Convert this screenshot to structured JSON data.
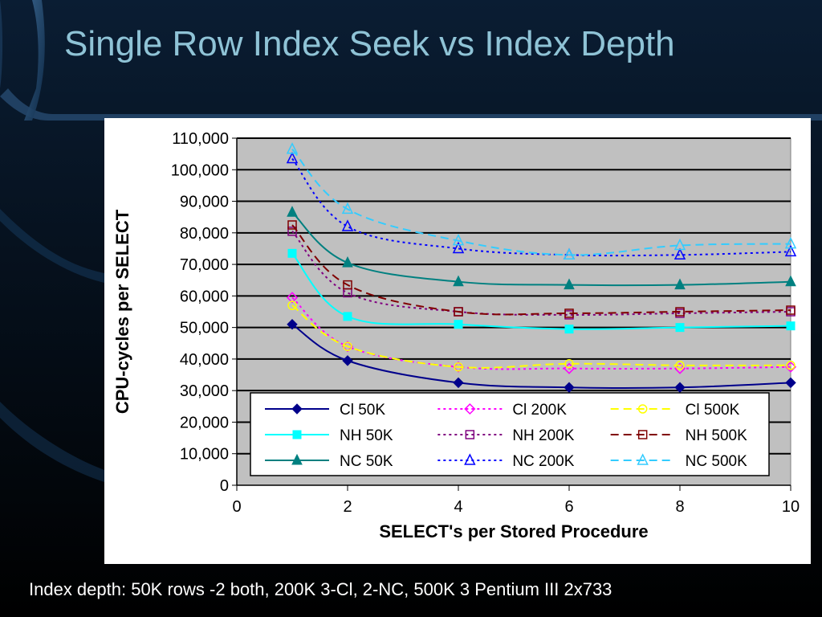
{
  "slide": {
    "title": "Single Row Index Seek vs Index Depth",
    "footer": "Index depth: 50K rows -2 both, 200K 3-Cl, 2-NC, 500K 3 Pentium III 2x733",
    "colors": {
      "background": "#000000",
      "title": "#8fc3d6",
      "footer": "#ffffff",
      "plot_area": "#c0c0c0"
    }
  },
  "chart_data": {
    "type": "line",
    "title": "",
    "xlabel": "SELECT's per Stored Procedure",
    "ylabel": "CPU-cycles per SELECT",
    "xlim": [
      0,
      10
    ],
    "ylim": [
      0,
      110000
    ],
    "x_ticks": [
      0,
      2,
      4,
      6,
      8,
      10
    ],
    "x_tick_labels": [
      "0",
      "2",
      "4",
      "6",
      "8",
      "10"
    ],
    "y_ticks": [
      0,
      10000,
      20000,
      30000,
      40000,
      50000,
      60000,
      70000,
      80000,
      90000,
      100000,
      110000
    ],
    "y_tick_labels": [
      "0",
      "10,000",
      "20,000",
      "30,000",
      "40,000",
      "50,000",
      "60,000",
      "70,000",
      "80,000",
      "90,000",
      "100,000",
      "110,000"
    ],
    "grid": "horizontal",
    "legend_position": "bottom-inside",
    "x": [
      1,
      2,
      4,
      6,
      8,
      10
    ],
    "series": [
      {
        "name": "Cl 50K",
        "values": [
          51000,
          39500,
          32500,
          31000,
          31000,
          32500
        ],
        "color": "#00008b",
        "dash": "solid",
        "marker": "diamond",
        "filled": true
      },
      {
        "name": "Cl 200K",
        "values": [
          59500,
          44000,
          37500,
          37000,
          37000,
          37500
        ],
        "color": "#ff00ff",
        "dash": "dot",
        "marker": "diamond",
        "filled": false
      },
      {
        "name": "Cl 500K",
        "values": [
          57000,
          44000,
          37500,
          38500,
          38000,
          38000
        ],
        "color": "#ffff00",
        "dash": "dash",
        "marker": "circle",
        "filled": false
      },
      {
        "name": "NH 50K",
        "values": [
          73500,
          53500,
          51000,
          49500,
          50000,
          50500
        ],
        "color": "#00ffff",
        "dash": "solid",
        "marker": "square",
        "filled": true
      },
      {
        "name": "NH 200K",
        "values": [
          80500,
          61000,
          55000,
          54000,
          54500,
          55000
        ],
        "color": "#800080",
        "dash": "dot",
        "marker": "square",
        "filled": false
      },
      {
        "name": "NH 500K",
        "values": [
          82500,
          63500,
          55000,
          54500,
          55000,
          55500
        ],
        "color": "#800000",
        "dash": "dash",
        "marker": "square",
        "filled": false
      },
      {
        "name": "NC 50K",
        "values": [
          86500,
          70500,
          64500,
          63500,
          63500,
          64500
        ],
        "color": "#008080",
        "dash": "solid",
        "marker": "triangle",
        "filled": true
      },
      {
        "name": "NC 200K",
        "values": [
          103500,
          82000,
          75000,
          73000,
          73000,
          74000
        ],
        "color": "#0000ff",
        "dash": "dot",
        "marker": "triangle",
        "filled": false
      },
      {
        "name": "NC 500K",
        "values": [
          106500,
          87500,
          77500,
          73000,
          76000,
          76500
        ],
        "color": "#33ccff",
        "dash": "dash",
        "marker": "triangle",
        "filled": false
      }
    ]
  }
}
